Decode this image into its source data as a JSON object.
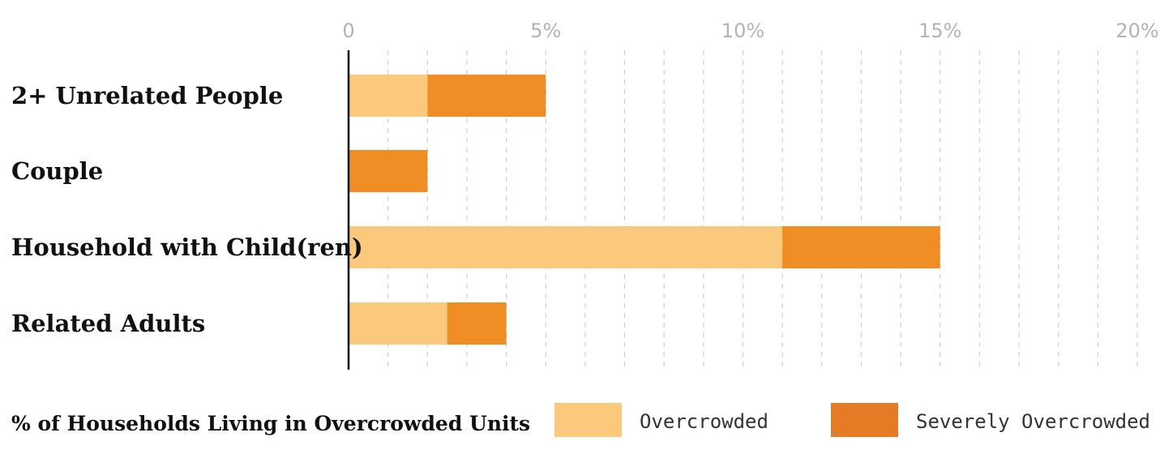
{
  "chart_data": {
    "type": "bar",
    "orientation": "horizontal",
    "stacked": true,
    "categories": [
      "2+ Unrelated People",
      "Couple",
      "Household with Child(ren)",
      "Related Adults"
    ],
    "series": [
      {
        "name": "Overcrowded",
        "color": "#fbc97b",
        "values": [
          2,
          0,
          11,
          2.5
        ]
      },
      {
        "name": "Severely Overcrowded",
        "color": "#f08d25",
        "values": [
          3,
          2,
          4,
          1.5
        ]
      }
    ],
    "xlim": [
      0,
      20
    ],
    "x_ticks": [
      0,
      5,
      10,
      15,
      20
    ],
    "x_tick_labels": [
      "0",
      "5%",
      "10%",
      "15%",
      "20%"
    ],
    "xlabel": "% of Households Living in Overcrowded Units",
    "grid": "vertical dashed every 1%",
    "legend_position": "bottom-right",
    "legend_swatch_colors": [
      "#fbc97b",
      "#e57c25"
    ]
  }
}
